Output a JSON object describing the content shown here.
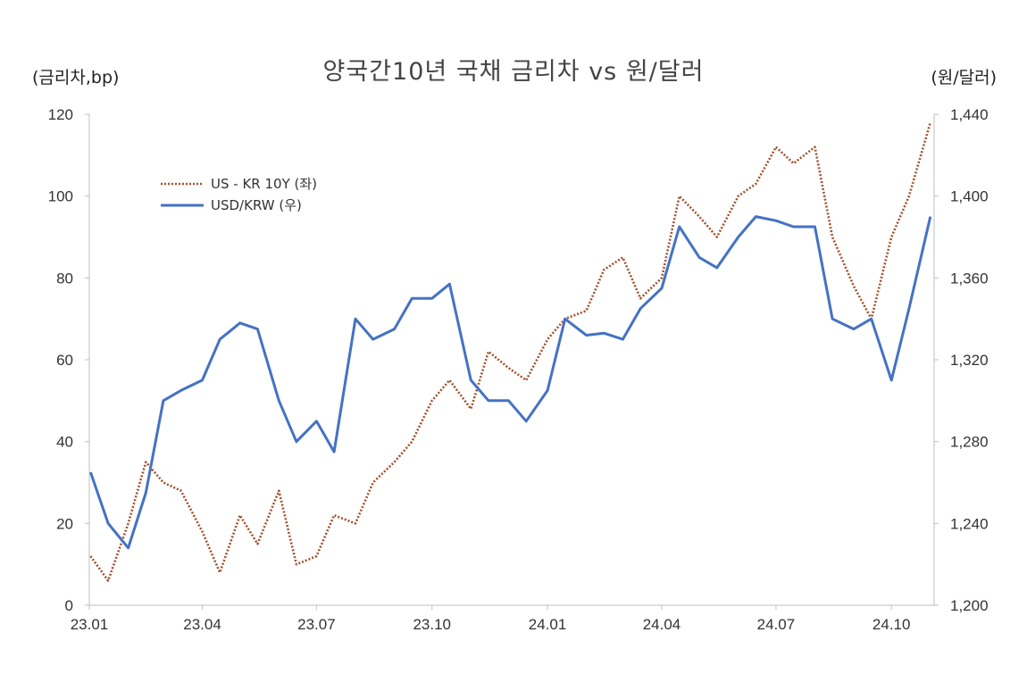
{
  "chart_data": {
    "type": "line",
    "title": "양국간10년 국채 금리차  vs 원/달러",
    "ylabel_left": "(금리차,bp)",
    "ylabel_right": "(원/달러)",
    "x_ticks": [
      "23.01",
      "23.04",
      "23.07",
      "23.10",
      "24.01",
      "24.04",
      "24.07",
      "24.10"
    ],
    "ylim_left": [
      0,
      120
    ],
    "ylim_right": [
      1200,
      1440
    ],
    "yticks_left": [
      "0",
      "20",
      "40",
      "60",
      "80",
      "100",
      "120"
    ],
    "yticks_right": [
      "1,200",
      "1,240",
      "1,280",
      "1,320",
      "1,360",
      "1,400",
      "1,440"
    ],
    "legend_position": "upper-left",
    "grid": false,
    "series": [
      {
        "name": "US - KR 10Y (좌)",
        "axis": "left",
        "color": "#a0522d",
        "style": "dotted",
        "x": [
          "2023-01-02",
          "2023-01-16",
          "2023-02-01",
          "2023-02-15",
          "2023-03-01",
          "2023-03-15",
          "2023-04-01",
          "2023-04-15",
          "2023-05-01",
          "2023-05-15",
          "2023-06-01",
          "2023-06-15",
          "2023-07-01",
          "2023-07-15",
          "2023-08-01",
          "2023-08-15",
          "2023-09-01",
          "2023-09-15",
          "2023-10-01",
          "2023-10-15",
          "2023-11-01",
          "2023-11-15",
          "2023-12-01",
          "2023-12-15",
          "2024-01-01",
          "2024-01-15",
          "2024-02-01",
          "2024-02-15",
          "2024-03-01",
          "2024-03-15",
          "2024-04-01",
          "2024-04-15",
          "2024-05-01",
          "2024-05-15",
          "2024-06-01",
          "2024-06-15",
          "2024-07-01",
          "2024-07-15",
          "2024-08-01",
          "2024-08-15",
          "2024-09-01",
          "2024-09-15",
          "2024-10-01",
          "2024-10-15",
          "2024-11-01"
        ],
        "values": [
          12,
          6,
          20,
          35,
          30,
          28,
          18,
          8,
          22,
          15,
          28,
          10,
          12,
          22,
          20,
          30,
          35,
          40,
          50,
          55,
          48,
          62,
          58,
          55,
          65,
          70,
          72,
          82,
          85,
          75,
          80,
          100,
          95,
          90,
          100,
          103,
          112,
          108,
          112,
          90,
          78,
          70,
          90,
          100,
          118
        ]
      },
      {
        "name": "USD/KRW (우)",
        "axis": "right",
        "color": "#4472c4",
        "style": "solid",
        "x": [
          "2023-01-02",
          "2023-01-16",
          "2023-02-01",
          "2023-02-15",
          "2023-03-01",
          "2023-03-15",
          "2023-04-01",
          "2023-04-15",
          "2023-05-01",
          "2023-05-15",
          "2023-06-01",
          "2023-06-15",
          "2023-07-01",
          "2023-07-15",
          "2023-08-01",
          "2023-08-15",
          "2023-09-01",
          "2023-09-15",
          "2023-10-01",
          "2023-10-15",
          "2023-11-01",
          "2023-11-15",
          "2023-12-01",
          "2023-12-15",
          "2024-01-01",
          "2024-01-15",
          "2024-02-01",
          "2024-02-15",
          "2024-03-01",
          "2024-03-15",
          "2024-04-01",
          "2024-04-15",
          "2024-05-01",
          "2024-05-15",
          "2024-06-01",
          "2024-06-15",
          "2024-07-01",
          "2024-07-15",
          "2024-08-01",
          "2024-08-15",
          "2024-09-01",
          "2024-09-15",
          "2024-10-01",
          "2024-10-15",
          "2024-11-01"
        ],
        "values": [
          1265,
          1240,
          1228,
          1255,
          1300,
          1305,
          1310,
          1330,
          1338,
          1335,
          1300,
          1280,
          1290,
          1275,
          1340,
          1330,
          1335,
          1350,
          1350,
          1357,
          1310,
          1300,
          1300,
          1290,
          1305,
          1340,
          1332,
          1333,
          1330,
          1345,
          1355,
          1385,
          1370,
          1365,
          1380,
          1390,
          1388,
          1385,
          1385,
          1340,
          1335,
          1340,
          1310,
          1345,
          1390
        ]
      }
    ]
  }
}
